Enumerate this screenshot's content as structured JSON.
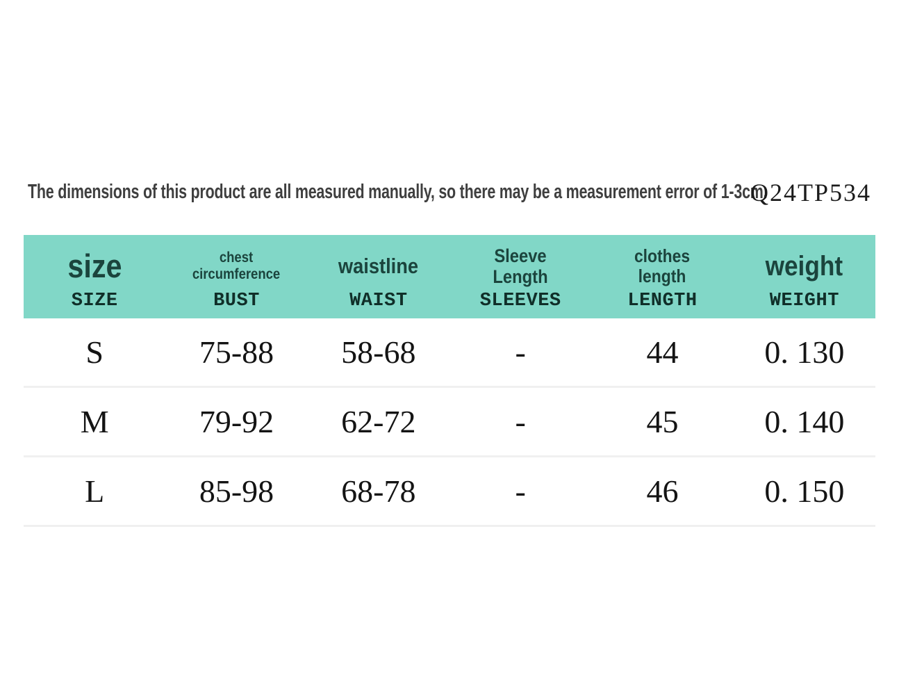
{
  "page": {
    "disclaimer": "The dimensions of this product are all measured manually, so there may be a measurement error of 1-3cm.",
    "product_code": "Q24TP534"
  },
  "colors": {
    "header_bg": "#81d7c7",
    "header_label_text": "#1b443d",
    "header_sublabel_text": "#102f29",
    "row_divider": "#f0f0f0"
  },
  "chart_data": {
    "type": "table",
    "columns": [
      {
        "label": "size",
        "sublabel": "SIZE"
      },
      {
        "label": "chest circumference",
        "sublabel": "BUST"
      },
      {
        "label": "waistline",
        "sublabel": "WAIST"
      },
      {
        "label": "Sleeve Length",
        "sublabel": "SLEEVES"
      },
      {
        "label": "clothes length",
        "sublabel": "LENGTH"
      },
      {
        "label": "weight",
        "sublabel": "WEIGHT"
      }
    ],
    "rows": [
      [
        "S",
        "75-88",
        "58-68",
        "-",
        "44",
        "0. 130"
      ],
      [
        "M",
        "79-92",
        "62-72",
        "-",
        "45",
        "0. 140"
      ],
      [
        "L",
        "85-98",
        "68-78",
        "-",
        "46",
        "0. 150"
      ]
    ]
  }
}
